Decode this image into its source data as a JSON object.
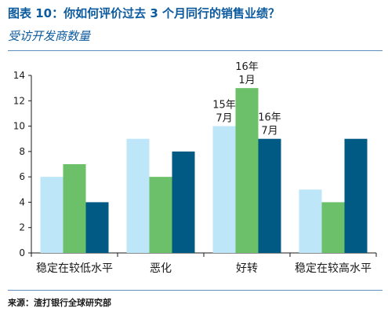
{
  "title": "图表 10：你如何评价过去 3 个月同行的销售业绩？",
  "subtitle": "受访开发商数量",
  "source": "来源：渣打银行全球研究部",
  "chart_data": {
    "type": "bar",
    "categories": [
      "稳定在较低水平",
      "恶化",
      "好转",
      "稳定在较高水平"
    ],
    "series": [
      {
        "name": "15年7月",
        "color": "#bde6f8",
        "values": [
          6,
          9,
          10,
          5
        ]
      },
      {
        "name": "16年1月",
        "color": "#6cc06a",
        "values": [
          7,
          6,
          13,
          4
        ]
      },
      {
        "name": "16年7月",
        "color": "#005a84",
        "values": [
          4,
          8,
          9,
          9
        ]
      }
    ],
    "annotations": [
      {
        "category_index": 2,
        "series_index": 0,
        "lines": [
          "15年",
          "7月"
        ]
      },
      {
        "category_index": 2,
        "series_index": 1,
        "lines": [
          "16年",
          "1月"
        ]
      },
      {
        "category_index": 2,
        "series_index": 2,
        "lines": [
          "16年",
          "7月"
        ]
      }
    ],
    "ylim": [
      0,
      14
    ],
    "yticks": [
      0,
      2,
      4,
      6,
      8,
      10,
      12,
      14
    ],
    "grid": false,
    "legend": "none"
  }
}
